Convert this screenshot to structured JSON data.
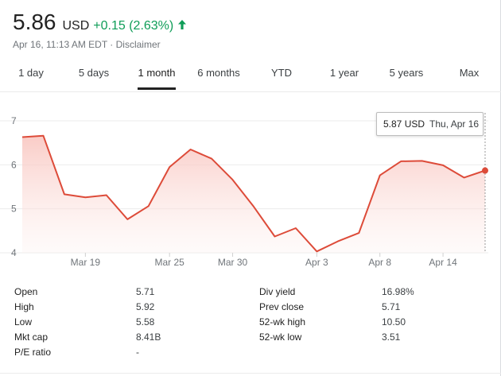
{
  "quote": {
    "price": "5.86",
    "currency": "USD",
    "change": "+0.15 (2.63%)",
    "change_color": "#0f9d58",
    "direction_icon": "arrow-up-icon",
    "timestamp": "Apr 16, 11:13 AM EDT",
    "separator": " · ",
    "disclaimer": "Disclaimer"
  },
  "tabs": [
    {
      "label": "1 day",
      "active": false
    },
    {
      "label": "5 days",
      "active": false
    },
    {
      "label": "1 month",
      "active": true
    },
    {
      "label": "6 months",
      "active": false
    },
    {
      "label": "YTD",
      "active": false
    },
    {
      "label": "1 year",
      "active": false
    },
    {
      "label": "5 years",
      "active": false
    },
    {
      "label": "Max",
      "active": false
    }
  ],
  "tooltip": {
    "value": "5.87 USD",
    "date": "Thu, Apr 16"
  },
  "chart_data": {
    "type": "area",
    "x": [
      "Mar 16",
      "Mar 17",
      "Mar 18",
      "Mar 19",
      "Mar 20",
      "Mar 23",
      "Mar 24",
      "Mar 25",
      "Mar 26",
      "Mar 27",
      "Mar 30",
      "Mar 31",
      "Apr 1",
      "Apr 2",
      "Apr 3",
      "Apr 6",
      "Apr 7",
      "Apr 8",
      "Apr 9",
      "Apr 13",
      "Apr 14",
      "Apr 15",
      "Apr 16"
    ],
    "values": [
      6.63,
      6.66,
      5.33,
      5.26,
      5.31,
      4.76,
      5.06,
      5.95,
      6.35,
      6.14,
      5.66,
      5.05,
      4.37,
      4.56,
      4.03,
      4.26,
      4.45,
      5.76,
      6.08,
      6.09,
      5.99,
      5.71,
      5.87
    ],
    "x_tick_labels": [
      "Mar 19",
      "Mar 25",
      "Mar 30",
      "Apr 3",
      "Apr 8",
      "Apr 14"
    ],
    "y_ticks": [
      4,
      5,
      6,
      7
    ],
    "ylim": [
      4,
      7
    ],
    "line_color": "#dd4b39",
    "fill_color": "#fce8e6",
    "grid": true
  },
  "stats": {
    "left": [
      {
        "label": "Open",
        "value": "5.71"
      },
      {
        "label": "High",
        "value": "5.92"
      },
      {
        "label": "Low",
        "value": "5.58"
      },
      {
        "label": "Mkt cap",
        "value": "8.41B"
      },
      {
        "label": "P/E ratio",
        "value": "-"
      }
    ],
    "right": [
      {
        "label": "Div yield",
        "value": "16.98%"
      },
      {
        "label": "Prev close",
        "value": "5.71"
      },
      {
        "label": "52-wk high",
        "value": "10.50"
      },
      {
        "label": "52-wk low",
        "value": "3.51"
      }
    ]
  }
}
